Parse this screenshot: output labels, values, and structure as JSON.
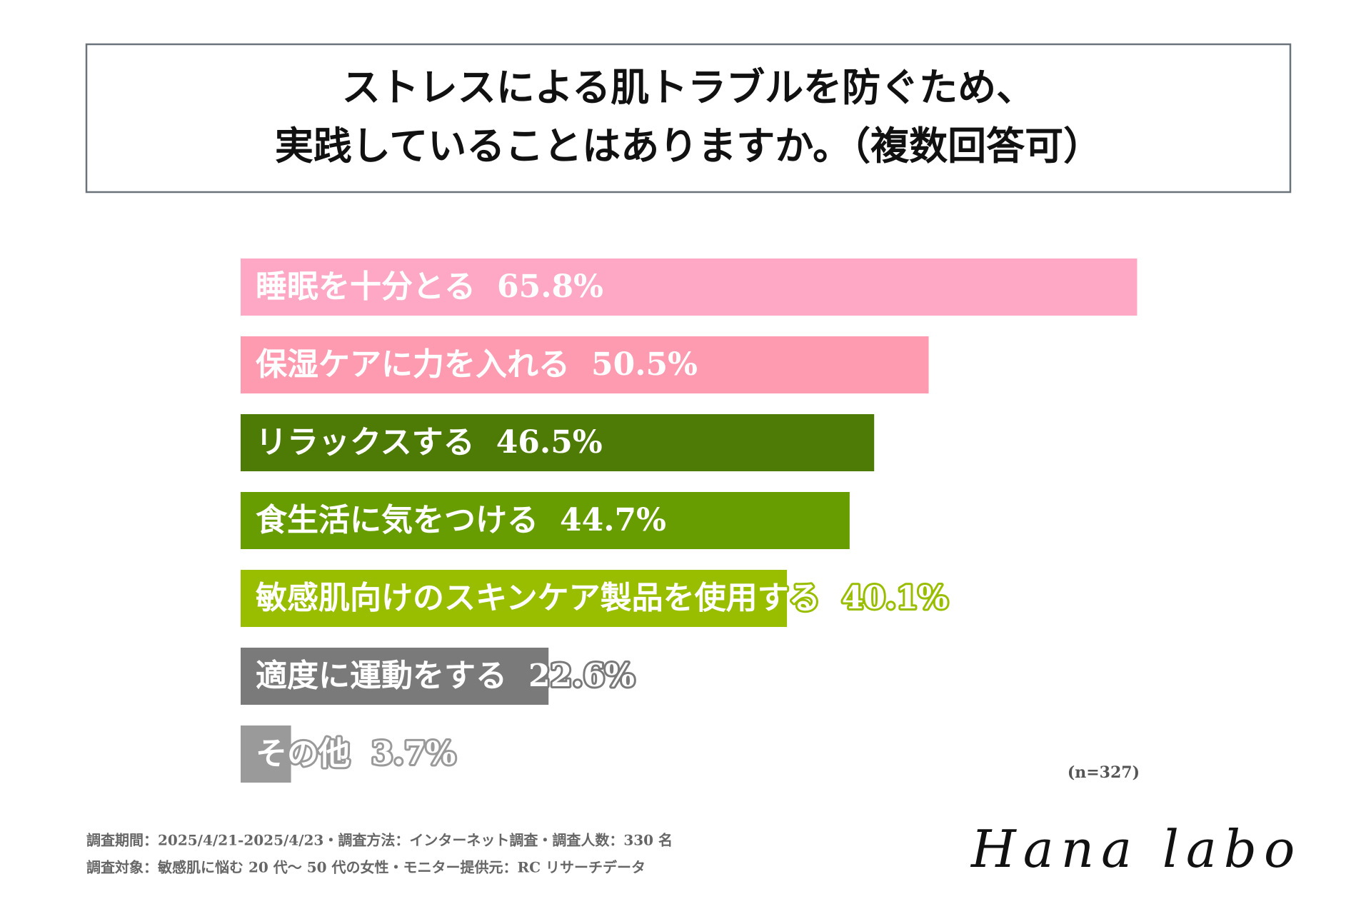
{
  "chart_data": {
    "type": "bar",
    "title": [
      "ストレスによる肌トラブルを防ぐため、",
      "実践していることはありますか。（複数回答可）"
    ],
    "categories": [
      "睡眠を十分とる",
      "保湿ケアに力を入れる",
      "リラックスする",
      "食生活に気をつける",
      "敏感肌向けのスキンケア製品を使用する",
      "適度に運動をする",
      "その他"
    ],
    "values": [
      65.8,
      50.5,
      46.5,
      44.7,
      40.1,
      22.6,
      3.7
    ],
    "value_labels": [
      "65.8%",
      "50.5%",
      "46.5%",
      "44.7%",
      "40.1%",
      "22.6%",
      "3.7%"
    ],
    "colors": [
      "#ffa8c5",
      "#ff9bb0",
      "#4e7a06",
      "#679d00",
      "#99be00",
      "#7a7a7a",
      "#9a9a9a"
    ],
    "note": "(n=327)",
    "footnotes": [
      "調査期間：2025/4/21-2025/4/23・調査方法：インターネット調査・調査人数：330 名",
      "調査対象：敏感肌に悩む 20 代〜 50 代の女性・モニター提供元：RC リサーチデータ"
    ],
    "logo": "Hana labo"
  }
}
